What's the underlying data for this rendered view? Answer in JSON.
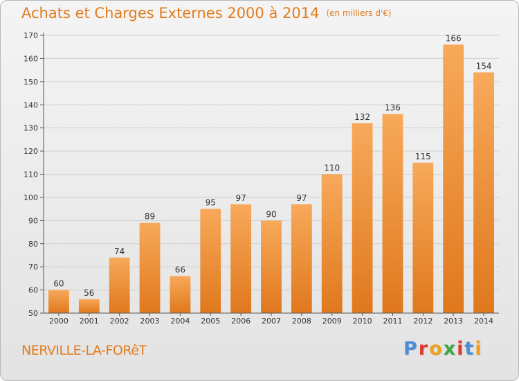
{
  "header": {
    "title": "Achats et Charges Externes 2000 à 2014",
    "unit": "(en milliers d'€)"
  },
  "footer": {
    "commune": "NERVILLE-LA-FORêT",
    "logo_letters": [
      "P",
      "r",
      "o",
      "x",
      "i",
      "t",
      "i"
    ]
  },
  "colors": {
    "accent": "#e07c1e",
    "bar_light": "#f7a95a",
    "bar_dark": "#e0781d",
    "logo": [
      "#4a8fd6",
      "#e03a2e",
      "#f0a020",
      "#3aa845",
      "#e03a2e",
      "#4a8fd6",
      "#f0a020"
    ]
  },
  "chart_data": {
    "type": "bar",
    "categories": [
      "2000",
      "2001",
      "2002",
      "2003",
      "2004",
      "2005",
      "2006",
      "2007",
      "2008",
      "2009",
      "2010",
      "2011",
      "2012",
      "2013",
      "2014"
    ],
    "values": [
      60,
      56,
      74,
      89,
      66,
      95,
      97,
      90,
      97,
      110,
      132,
      136,
      115,
      166,
      154
    ],
    "ylim": [
      50,
      170
    ],
    "yticks": [
      50,
      60,
      70,
      80,
      90,
      100,
      110,
      120,
      130,
      140,
      150,
      160,
      170
    ],
    "grid": true
  }
}
